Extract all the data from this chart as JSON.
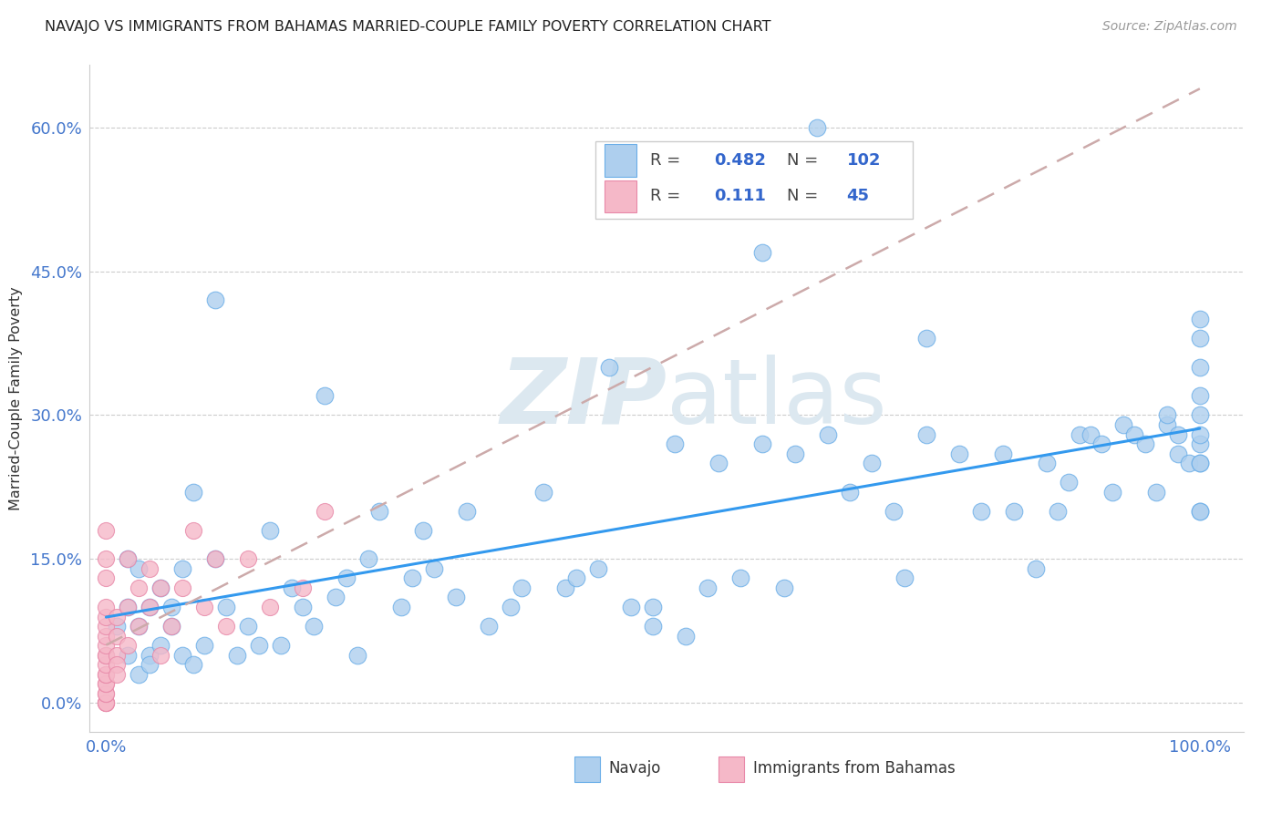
{
  "title": "NAVAJO VS IMMIGRANTS FROM BAHAMAS MARRIED-COUPLE FAMILY POVERTY CORRELATION CHART",
  "source": "Source: ZipAtlas.com",
  "ylabel": "Married-Couple Family Poverty",
  "ytick_labels": [
    "0.0%",
    "15.0%",
    "30.0%",
    "45.0%",
    "60.0%"
  ],
  "ytick_values": [
    0.0,
    0.15,
    0.3,
    0.45,
    0.6
  ],
  "navajo_R": 0.482,
  "navajo_N": 102,
  "bahamas_R": 0.111,
  "bahamas_N": 45,
  "navajo_color": "#aecfee",
  "navajo_edge_color": "#6aaee8",
  "bahamas_color": "#f5b8c8",
  "bahamas_edge_color": "#e888a8",
  "navajo_line_color": "#3399ee",
  "bahamas_line_color": "#ccaaaa",
  "watermark": "ZIPatlas",
  "watermark_color": "#dce8f0",
  "legend_label_navajo": "Navajo",
  "legend_label_bahamas": "Immigrants from Bahamas",
  "nav_x": [
    0.01,
    0.02,
    0.02,
    0.02,
    0.03,
    0.03,
    0.03,
    0.04,
    0.04,
    0.04,
    0.05,
    0.05,
    0.06,
    0.06,
    0.07,
    0.07,
    0.08,
    0.08,
    0.09,
    0.1,
    0.1,
    0.11,
    0.12,
    0.13,
    0.14,
    0.15,
    0.16,
    0.17,
    0.18,
    0.19,
    0.2,
    0.21,
    0.22,
    0.23,
    0.24,
    0.25,
    0.27,
    0.28,
    0.29,
    0.3,
    0.32,
    0.33,
    0.35,
    0.37,
    0.38,
    0.4,
    0.42,
    0.43,
    0.45,
    0.46,
    0.48,
    0.5,
    0.5,
    0.52,
    0.53,
    0.55,
    0.56,
    0.58,
    0.6,
    0.6,
    0.62,
    0.63,
    0.65,
    0.66,
    0.68,
    0.7,
    0.72,
    0.73,
    0.75,
    0.75,
    0.78,
    0.8,
    0.82,
    0.83,
    0.85,
    0.86,
    0.87,
    0.88,
    0.89,
    0.9,
    0.91,
    0.92,
    0.93,
    0.94,
    0.95,
    0.96,
    0.97,
    0.97,
    0.98,
    0.98,
    0.99,
    1.0,
    1.0,
    1.0,
    1.0,
    1.0,
    1.0,
    1.0,
    1.0,
    1.0,
    1.0,
    1.0
  ],
  "nav_y": [
    0.08,
    0.15,
    0.1,
    0.05,
    0.14,
    0.08,
    0.03,
    0.1,
    0.05,
    0.04,
    0.12,
    0.06,
    0.1,
    0.08,
    0.14,
    0.05,
    0.04,
    0.22,
    0.06,
    0.42,
    0.15,
    0.1,
    0.05,
    0.08,
    0.06,
    0.18,
    0.06,
    0.12,
    0.1,
    0.08,
    0.32,
    0.11,
    0.13,
    0.05,
    0.15,
    0.2,
    0.1,
    0.13,
    0.18,
    0.14,
    0.11,
    0.2,
    0.08,
    0.1,
    0.12,
    0.22,
    0.12,
    0.13,
    0.14,
    0.35,
    0.1,
    0.1,
    0.08,
    0.27,
    0.07,
    0.12,
    0.25,
    0.13,
    0.27,
    0.47,
    0.12,
    0.26,
    0.6,
    0.28,
    0.22,
    0.25,
    0.2,
    0.13,
    0.38,
    0.28,
    0.26,
    0.2,
    0.26,
    0.2,
    0.14,
    0.25,
    0.2,
    0.23,
    0.28,
    0.28,
    0.27,
    0.22,
    0.29,
    0.28,
    0.27,
    0.22,
    0.29,
    0.3,
    0.28,
    0.26,
    0.25,
    0.32,
    0.35,
    0.25,
    0.2,
    0.27,
    0.4,
    0.2,
    0.3,
    0.28,
    0.25,
    0.38
  ],
  "bah_x": [
    0.0,
    0.0,
    0.0,
    0.0,
    0.0,
    0.0,
    0.0,
    0.0,
    0.0,
    0.0,
    0.0,
    0.0,
    0.0,
    0.0,
    0.0,
    0.0,
    0.0,
    0.0,
    0.0,
    0.0,
    0.0,
    0.01,
    0.01,
    0.01,
    0.01,
    0.01,
    0.02,
    0.02,
    0.02,
    0.03,
    0.03,
    0.04,
    0.04,
    0.05,
    0.05,
    0.06,
    0.07,
    0.08,
    0.09,
    0.1,
    0.11,
    0.13,
    0.15,
    0.18,
    0.2
  ],
  "bah_y": [
    0.0,
    0.0,
    0.0,
    0.0,
    0.01,
    0.01,
    0.02,
    0.02,
    0.03,
    0.03,
    0.04,
    0.05,
    0.05,
    0.06,
    0.07,
    0.08,
    0.09,
    0.1,
    0.13,
    0.15,
    0.18,
    0.05,
    0.04,
    0.03,
    0.07,
    0.09,
    0.1,
    0.06,
    0.15,
    0.08,
    0.12,
    0.1,
    0.14,
    0.05,
    0.12,
    0.08,
    0.12,
    0.18,
    0.1,
    0.15,
    0.08,
    0.15,
    0.1,
    0.12,
    0.2
  ]
}
